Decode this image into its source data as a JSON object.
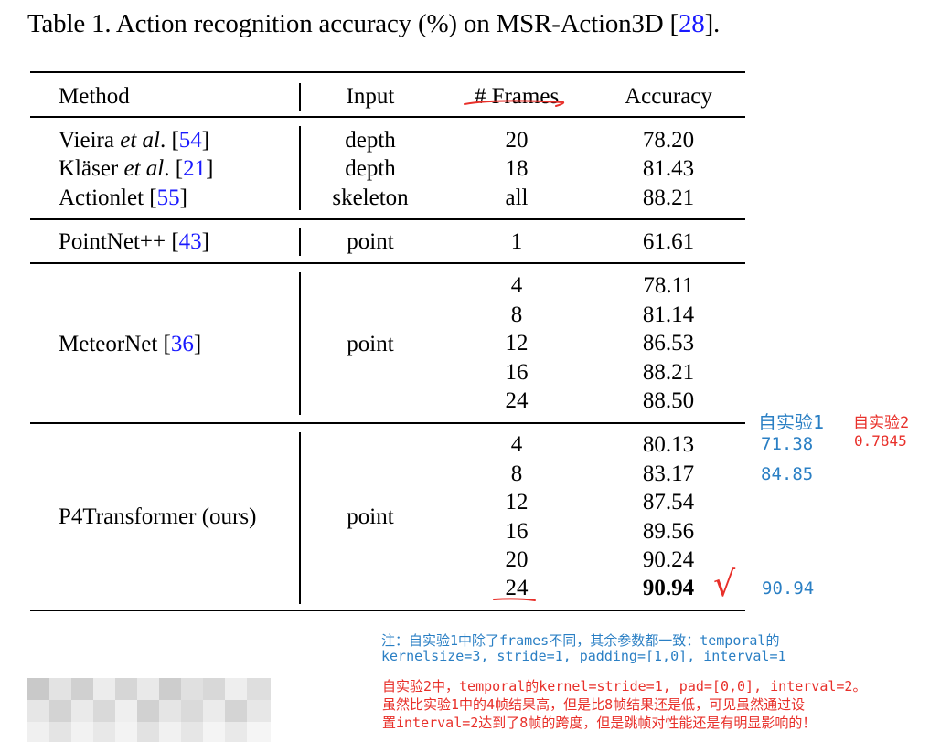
{
  "caption": {
    "prefix": "Table 1. Action recognition accuracy (%) on MSR-Action3D ",
    "bracket_open": "[",
    "ref": "28",
    "bracket_close": "]."
  },
  "headers": {
    "method": "Method",
    "input": "Input",
    "frames": "# Frames",
    "accuracy": "Accuracy"
  },
  "rows": [
    {
      "method": "Vieira",
      "method_em": "et al",
      "method_tail": ". [",
      "ref": "54",
      "close": "]",
      "input": "depth",
      "frames": "20",
      "accuracy": "78.20"
    },
    {
      "method": "Kläser",
      "method_em": "et al",
      "method_tail": ". [",
      "ref": "21",
      "close": "]",
      "input": "depth",
      "frames": "18",
      "accuracy": "81.43"
    },
    {
      "method": "Actionlet [",
      "method_em": "",
      "method_tail": "",
      "ref": "55",
      "close": "]",
      "input": "skeleton",
      "frames": "all",
      "accuracy": "88.21"
    },
    {
      "method": "PointNet++ [",
      "ref": "43",
      "close": "]",
      "input": "point",
      "frames": "1",
      "accuracy": "61.61"
    }
  ],
  "meteornet": {
    "method": "MeteorNet [",
    "ref": "36",
    "close": "]",
    "input": "point",
    "frames": [
      "4",
      "8",
      "12",
      "16",
      "24"
    ],
    "accuracy": [
      "78.11",
      "81.14",
      "86.53",
      "88.21",
      "88.50"
    ]
  },
  "p4": {
    "method": "P4Transformer (ours)",
    "input": "point",
    "frames": [
      "4",
      "8",
      "12",
      "16",
      "20",
      "24"
    ],
    "accuracy": [
      "80.13",
      "83.17",
      "87.54",
      "89.56",
      "90.24",
      "90.94"
    ]
  },
  "annotations": {
    "exp1_title": "自实验1",
    "exp2_title": "自实验2",
    "exp1_val_4": "71.38",
    "exp2_val_4": "0.7845",
    "exp1_val_8": "84.85",
    "exp1_val_24": "90.94",
    "checkmark": "√",
    "note1_line1": "注：自实验1中除了frames不同，其余参数都一致：temporal的",
    "note1_line2": "kernelsize=3, stride=1, padding=[1,0], interval=1",
    "note2_line1": "自实验2中，temporal的kernel=stride=1, pad=[0,0], interval=2。",
    "note2_line2": "虽然比实验1中的4帧结果高，但是比8帧结果还是低，可见虽然通过设",
    "note2_line3": "置interval=2达到了8帧的跨度，但是跳帧对性能还是有明显影响的！"
  },
  "colors": {
    "link": "#1a1aff",
    "annot_blue": "#2a7fc4",
    "annot_red": "#e8302a"
  }
}
